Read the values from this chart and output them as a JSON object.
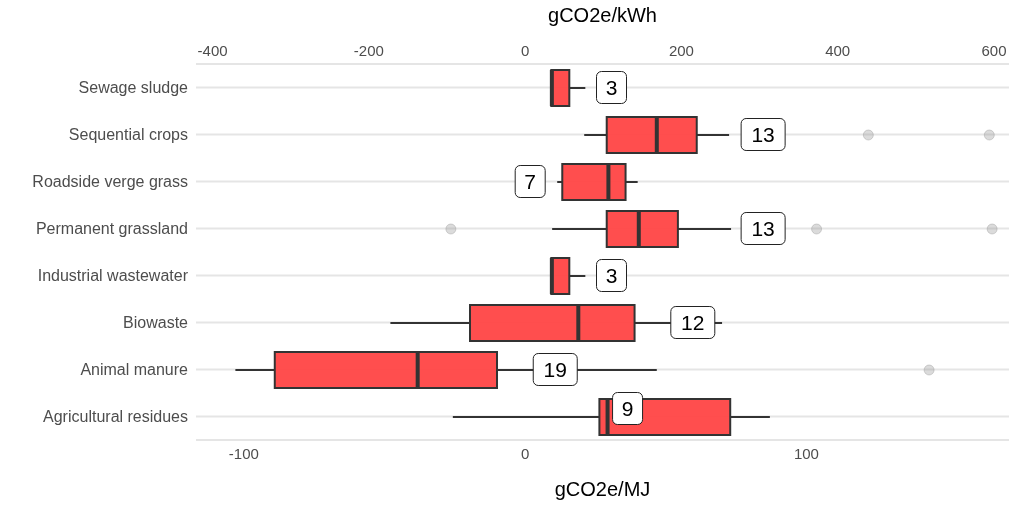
{
  "chart_data": {
    "type": "box",
    "orientation": "horizontal",
    "xlabel": "gCO2e/MJ",
    "x2label": "gCO2e/kWh",
    "categories": [
      "Sewage sludge",
      "Sequential crops",
      "Roadside verge grass",
      "Permanent grassland",
      "Industrial wastewater",
      "Biowaste",
      "Animal manure",
      "Agricultural residues"
    ],
    "series": [
      {
        "color": "#ff4545",
        "boxes": [
          {
            "low": 9.3,
            "q1": 9.3,
            "median": 9.5,
            "q3": 15.7,
            "high": 21.4
          },
          {
            "low": 21,
            "q1": 29,
            "median": 46.8,
            "q3": 61,
            "high": 72.5,
            "outliers": [
              122,
              165
            ]
          },
          {
            "low": 11.4,
            "q1": 13.2,
            "median": 29.6,
            "q3": 35.7,
            "high": 40
          },
          {
            "low": 9.6,
            "q1": 29,
            "median": 40.4,
            "q3": 54.3,
            "high": 73.2,
            "outliers": [
              -26.4,
              103.6,
              166
            ]
          },
          {
            "low": 9.3,
            "q1": 9.3,
            "median": 9.5,
            "q3": 15.7,
            "high": 21.4
          },
          {
            "low": -47.9,
            "q1": -19.6,
            "median": 18.9,
            "q3": 38.9,
            "high": 70
          },
          {
            "low": -103,
            "q1": -89,
            "median": -38.2,
            "q3": -10,
            "high": 46.8,
            "outliers": [
              143.6
            ]
          },
          {
            "low": -25.7,
            "q1": 26.4,
            "median": 29.3,
            "q3": 72.9,
            "high": 87
          }
        ]
      }
    ],
    "xlim": [
      -117,
      172
    ],
    "xticks": [
      -100,
      0,
      100
    ],
    "x2lim": [
      -421.2,
      619.2
    ],
    "x2ticks": [
      -400,
      -200,
      0,
      200,
      400,
      600
    ],
    "grid": "y",
    "annotations": [
      {
        "text": "3",
        "x": 30.7,
        "y": "Sewage sludge"
      },
      {
        "text": "13",
        "x": 84.6,
        "y": "Sequential crops"
      },
      {
        "text": "7",
        "x": 1.8,
        "y": "Roadside verge grass"
      },
      {
        "text": "13",
        "x": 84.6,
        "y": "Permanent grassland"
      },
      {
        "text": "3",
        "x": 30.7,
        "y": "Industrial wastewater"
      },
      {
        "text": "12",
        "x": 59.6,
        "y": "Biowaste"
      },
      {
        "text": "19",
        "x": 10.7,
        "y": "Animal manure"
      },
      "9"
    ]
  }
}
